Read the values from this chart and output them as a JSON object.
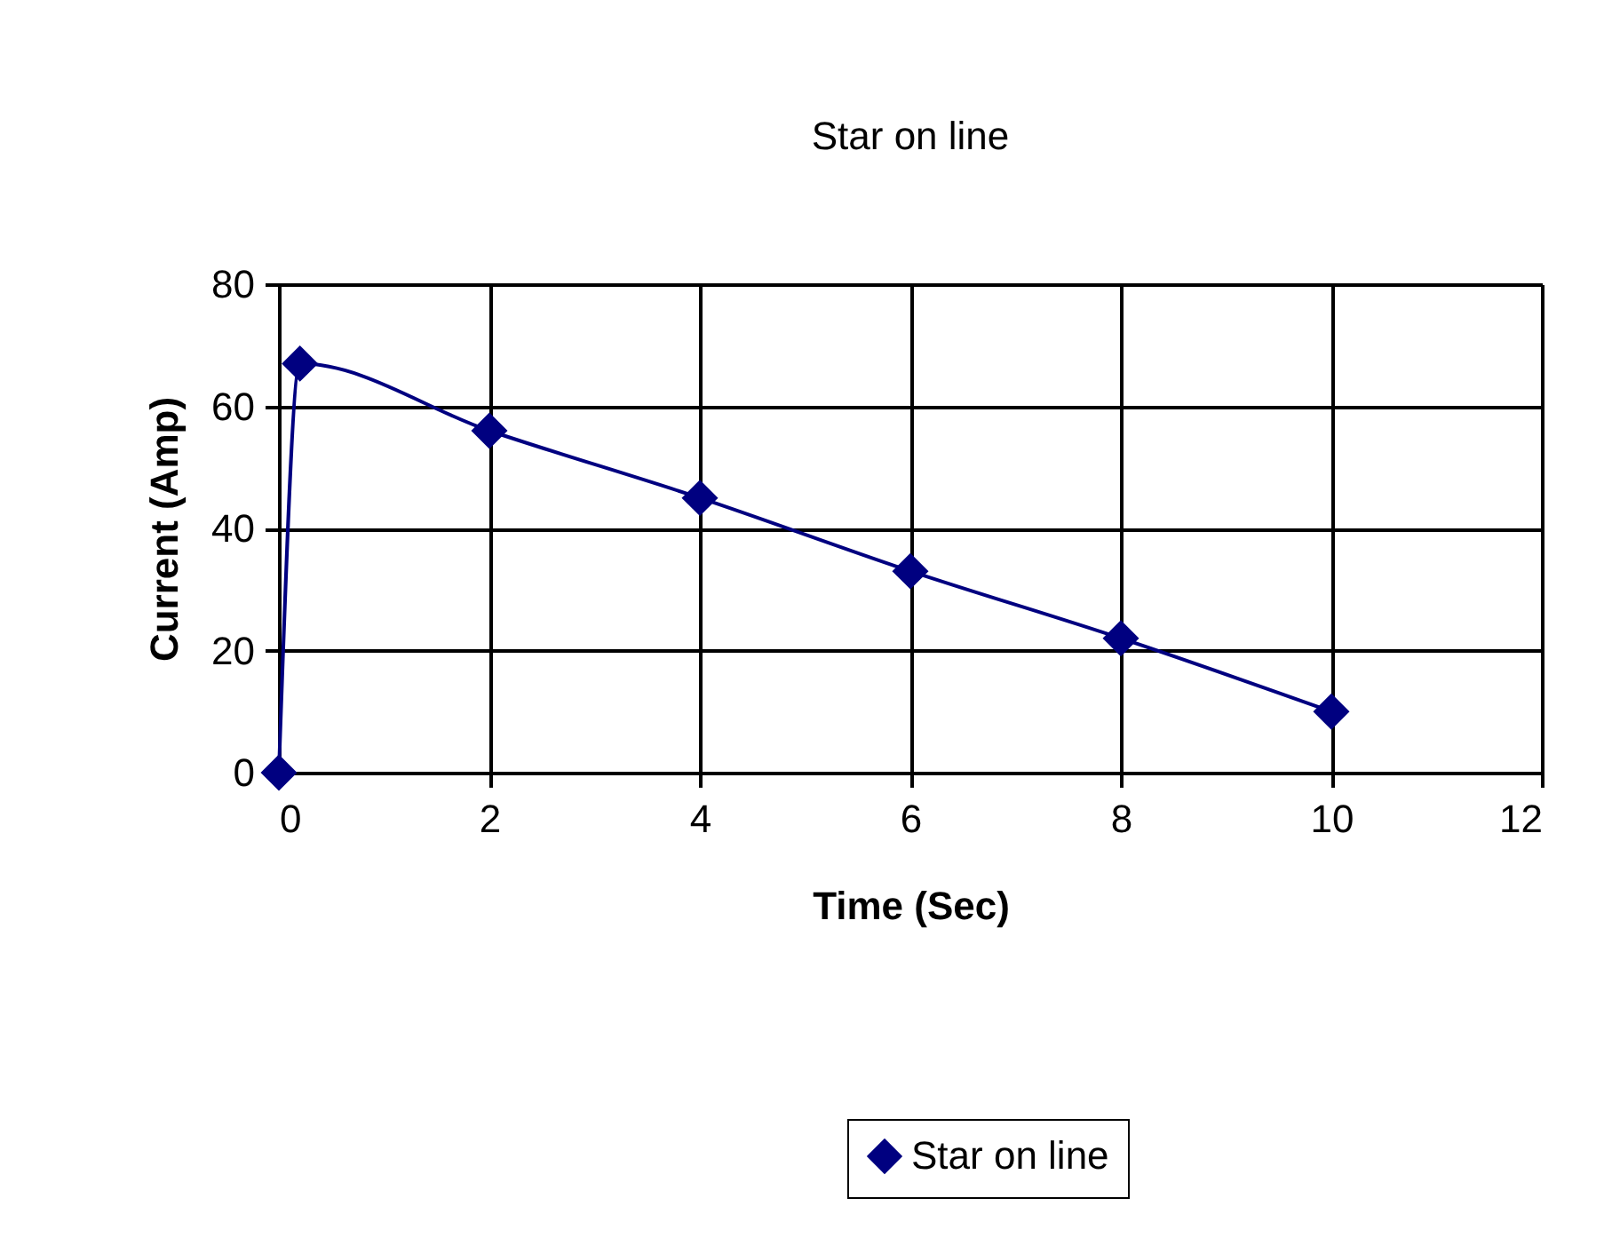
{
  "chart_data": {
    "type": "line",
    "title": "Star on line",
    "xlabel": "Time (Sec)",
    "ylabel": "Current (Amp)",
    "x": [
      0,
      0.2,
      2,
      4,
      6,
      8,
      10
    ],
    "series": [
      {
        "name": "Star on line",
        "color": "#000080",
        "values": [
          0,
          67,
          56,
          45,
          33,
          22,
          10
        ]
      }
    ],
    "xlim": [
      0,
      12
    ],
    "xticks": [
      0,
      2,
      4,
      6,
      8,
      10,
      12
    ],
    "ylim": [
      0,
      80
    ],
    "yticks": [
      0,
      20,
      40,
      60,
      80
    ],
    "grid": true,
    "legend": "bottom",
    "marker": "diamond",
    "line_style": "solid"
  }
}
